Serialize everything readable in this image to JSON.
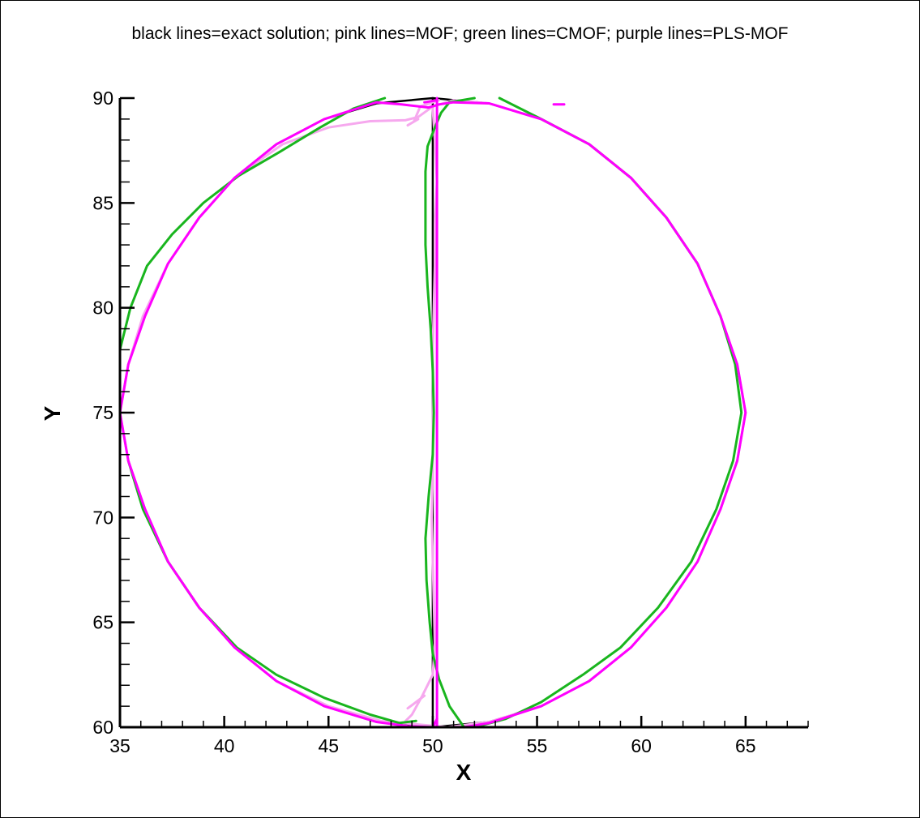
{
  "chart_data": {
    "type": "line",
    "title": "black lines=exact solution; pink lines=MOF; green lines=CMOF; purple lines=PLS-MOF",
    "xlabel": "X",
    "ylabel": "Y",
    "xlim": [
      35,
      68
    ],
    "ylim": [
      60,
      90
    ],
    "x_ticks": [
      35,
      40,
      45,
      50,
      55,
      60,
      65
    ],
    "y_ticks": [
      60,
      65,
      70,
      75,
      80,
      85,
      90
    ],
    "x_tick_labels": [
      "35",
      "40",
      "45",
      "50",
      "55",
      "60",
      "65"
    ],
    "y_tick_labels": [
      "60",
      "65",
      "70",
      "75",
      "80",
      "85",
      "90"
    ],
    "grid": false,
    "legend": "none",
    "series": [
      {
        "color": "#000000",
        "segments": [
          [
            [
              50,
              60
            ],
            [
              47.3,
              60.25
            ],
            [
              44.8,
              61
            ],
            [
              42.5,
              62.2
            ],
            [
              40.5,
              63.8
            ],
            [
              38.8,
              65.7
            ],
            [
              37.3,
              67.9
            ],
            [
              36.2,
              70.4
            ],
            [
              35.4,
              72.7
            ],
            [
              35,
              75
            ],
            [
              35.4,
              77.3
            ],
            [
              36.2,
              79.6
            ],
            [
              37.3,
              82.1
            ],
            [
              38.8,
              84.3
            ],
            [
              40.5,
              86.2
            ],
            [
              42.5,
              87.8
            ],
            [
              44.8,
              89
            ],
            [
              47.3,
              89.75
            ],
            [
              50,
              90
            ],
            [
              52.7,
              89.75
            ],
            [
              55.2,
              89
            ],
            [
              57.5,
              87.8
            ],
            [
              59.5,
              86.2
            ],
            [
              61.2,
              84.3
            ],
            [
              62.7,
              82.1
            ],
            [
              63.8,
              79.6
            ],
            [
              64.6,
              77.3
            ],
            [
              65,
              75
            ],
            [
              64.6,
              72.7
            ],
            [
              63.8,
              70.4
            ],
            [
              62.7,
              67.9
            ],
            [
              61.2,
              65.7
            ],
            [
              59.5,
              63.8
            ],
            [
              57.5,
              62.2
            ],
            [
              55.2,
              61
            ],
            [
              52.7,
              60.25
            ],
            [
              50,
              60
            ]
          ],
          [
            [
              50,
              60
            ],
            [
              50,
              90
            ]
          ]
        ]
      },
      {
        "color": "#f6a8ee",
        "segments": [
          [
            [
              50.7,
              60
            ],
            [
              47.5,
              60.3
            ],
            [
              45,
              61
            ],
            [
              42.5,
              62.2
            ],
            [
              40.5,
              63.8
            ],
            [
              38.8,
              65.7
            ],
            [
              37.3,
              67.9
            ],
            [
              36.2,
              70.4
            ],
            [
              35.4,
              72.7
            ],
            [
              35,
              75
            ],
            [
              35.4,
              77.3
            ],
            [
              36.1,
              79.6
            ],
            [
              37.3,
              82.1
            ],
            [
              38.8,
              84.3
            ],
            [
              40.5,
              86.2
            ],
            [
              42.8,
              87.8
            ],
            [
              45,
              88.6
            ],
            [
              47,
              88.9
            ],
            [
              48.7,
              88.95
            ],
            [
              49.3,
              89.1
            ],
            [
              50,
              89.6
            ],
            [
              51,
              89.9
            ],
            [
              52.7,
              89.75
            ],
            [
              55.2,
              89
            ],
            [
              57.5,
              87.8
            ],
            [
              59.5,
              86.2
            ],
            [
              61.2,
              84.3
            ],
            [
              62.7,
              82.1
            ],
            [
              63.8,
              79.6
            ],
            [
              64.6,
              77.3
            ],
            [
              65,
              75
            ],
            [
              64.6,
              72.7
            ],
            [
              63.8,
              70.4
            ],
            [
              62.7,
              67.9
            ],
            [
              61.2,
              65.7
            ],
            [
              59.5,
              63.8
            ],
            [
              57.5,
              62.2
            ],
            [
              55.2,
              61
            ],
            [
              52.7,
              60.25
            ],
            [
              50.7,
              60
            ]
          ],
          [
            [
              49.1,
              88.9
            ],
            [
              49.4,
              89.6
            ],
            [
              50.3,
              89.9
            ]
          ],
          [
            [
              48.8,
              88.7
            ],
            [
              49.3,
              89
            ]
          ],
          [
            [
              50,
              89.5
            ],
            [
              50.1,
              88
            ],
            [
              50.2,
              86
            ],
            [
              50.1,
              84
            ],
            [
              50.1,
              82
            ],
            [
              50.05,
              80
            ],
            [
              50,
              78
            ],
            [
              50.02,
              76
            ],
            [
              50,
              74
            ],
            [
              50,
              72
            ],
            [
              49.95,
              70
            ],
            [
              50,
              68
            ],
            [
              50.05,
              66
            ],
            [
              50.1,
              64
            ],
            [
              50,
              62.5
            ],
            [
              49.5,
              61.5
            ],
            [
              49,
              60.6
            ],
            [
              48.7,
              60.3
            ]
          ],
          [
            [
              48.8,
              60.9
            ],
            [
              49.2,
              61.2
            ],
            [
              49.6,
              61.5
            ]
          ]
        ]
      },
      {
        "color": "#19b51e",
        "segments": [
          [
            [
              35,
              78
            ],
            [
              35.5,
              80
            ],
            [
              36.3,
              82
            ],
            [
              37.5,
              83.5
            ],
            [
              39,
              85
            ],
            [
              40.7,
              86.3
            ],
            [
              42.6,
              87.4
            ],
            [
              44.6,
              88.6
            ],
            [
              46.2,
              89.5
            ],
            [
              47.7,
              90
            ]
          ],
          [
            [
              50.8,
              89.8
            ],
            [
              52,
              90
            ]
          ],
          [
            [
              53.2,
              90
            ],
            [
              55.2,
              89
            ],
            [
              57.5,
              87.8
            ],
            [
              59.5,
              86.2
            ],
            [
              61.2,
              84.3
            ],
            [
              62.7,
              82.1
            ],
            [
              63.8,
              79.6
            ],
            [
              64.5,
              77.3
            ],
            [
              64.8,
              75
            ],
            [
              64.4,
              72.7
            ],
            [
              63.6,
              70.4
            ],
            [
              62.4,
              67.9
            ],
            [
              60.8,
              65.7
            ],
            [
              59,
              63.8
            ],
            [
              57.2,
              62.5
            ],
            [
              55.2,
              61.2
            ],
            [
              53.5,
              60.4
            ],
            [
              52,
              60
            ]
          ],
          [
            [
              35.4,
              72.7
            ],
            [
              36.1,
              70.4
            ],
            [
              37.3,
              67.9
            ],
            [
              38.8,
              65.7
            ],
            [
              40.6,
              63.8
            ],
            [
              42.5,
              62.5
            ],
            [
              44.8,
              61.4
            ],
            [
              47,
              60.6
            ],
            [
              48.4,
              60.2
            ],
            [
              49.2,
              60.3
            ]
          ],
          [
            [
              51.5,
              60
            ],
            [
              50.8,
              61
            ],
            [
              50.3,
              62.3
            ],
            [
              50,
              63.5
            ],
            [
              49.85,
              65
            ],
            [
              49.7,
              67
            ],
            [
              49.65,
              69
            ],
            [
              49.8,
              71
            ],
            [
              50,
              73
            ],
            [
              50.05,
              75
            ],
            [
              50,
              77
            ],
            [
              49.9,
              79
            ],
            [
              49.75,
              81
            ],
            [
              49.65,
              83
            ],
            [
              49.65,
              85
            ],
            [
              49.65,
              86.5
            ],
            [
              49.75,
              87.7
            ],
            [
              50.1,
              88.6
            ],
            [
              50.4,
              89.3
            ],
            [
              50.8,
              89.8
            ]
          ]
        ]
      },
      {
        "color": "#ff00ff",
        "segments": [
          [
            [
              51.5,
              60
            ],
            [
              52.7,
              60.2
            ],
            [
              55.2,
              61
            ],
            [
              57.5,
              62.2
            ],
            [
              59.5,
              63.8
            ],
            [
              61.2,
              65.7
            ],
            [
              62.7,
              67.9
            ],
            [
              63.8,
              70.4
            ],
            [
              64.6,
              72.7
            ],
            [
              65,
              75
            ],
            [
              64.6,
              77.3
            ],
            [
              63.8,
              79.6
            ],
            [
              62.7,
              82.1
            ],
            [
              61.2,
              84.3
            ],
            [
              59.5,
              86.2
            ],
            [
              57.5,
              87.8
            ],
            [
              55.2,
              89
            ],
            [
              52.7,
              89.75
            ],
            [
              51,
              89.8
            ],
            [
              50.3,
              89.7
            ],
            [
              49.8,
              89.55
            ],
            [
              48.5,
              89.7
            ],
            [
              47.3,
              89.8
            ],
            [
              44.8,
              89
            ],
            [
              42.5,
              87.8
            ],
            [
              40.5,
              86.2
            ],
            [
              38.8,
              84.3
            ],
            [
              37.3,
              82.1
            ],
            [
              36.2,
              79.6
            ],
            [
              35.4,
              77.3
            ],
            [
              35,
              75
            ],
            [
              35.4,
              72.7
            ],
            [
              36.2,
              70.4
            ],
            [
              37.3,
              67.9
            ],
            [
              38.8,
              65.7
            ],
            [
              40.5,
              63.8
            ],
            [
              42.5,
              62.2
            ],
            [
              44.8,
              61
            ],
            [
              47.3,
              60.25
            ],
            [
              48.8,
              60.05
            ],
            [
              50,
              60
            ]
          ],
          [
            [
              50.2,
              90
            ],
            [
              50.2,
              60
            ]
          ],
          [
            [
              49.6,
              89.8
            ],
            [
              50.2,
              89.9
            ]
          ],
          [
            [
              50,
              60
            ],
            [
              50.2,
              60.4
            ]
          ],
          [
            [
              55.8,
              89.7
            ],
            [
              56.3,
              89.7
            ]
          ]
        ]
      }
    ]
  }
}
